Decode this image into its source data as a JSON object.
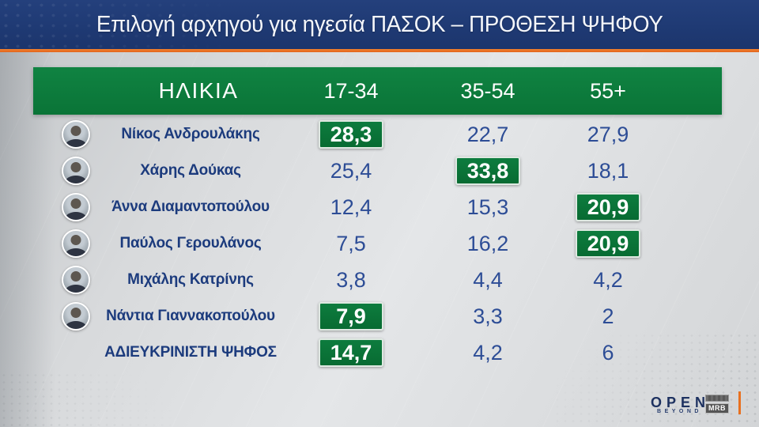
{
  "title": "Επιλογή αρχηγού για ηγεσία ΠΑΣΟΚ – ΠΡΟΘΕΣΗ ΨΗΦΟΥ",
  "table": {
    "age_label": "ΗΛΙΚΙΑ",
    "columns": [
      "17-34",
      "35-54",
      "55+"
    ],
    "rows": [
      {
        "name": "Νίκος Ανδρουλάκης",
        "values": [
          "28,3",
          "22,7",
          "27,9"
        ],
        "highlight": [
          true,
          false,
          false
        ],
        "has_photo": true
      },
      {
        "name": "Χάρης Δούκας",
        "values": [
          "25,4",
          "33,8",
          "18,1"
        ],
        "highlight": [
          false,
          true,
          false
        ],
        "has_photo": true
      },
      {
        "name": "Άννα Διαμαντοπούλου",
        "values": [
          "12,4",
          "15,3",
          "20,9"
        ],
        "highlight": [
          false,
          false,
          true
        ],
        "has_photo": true
      },
      {
        "name": "Παύλος Γερουλάνος",
        "values": [
          "7,5",
          "16,2",
          "20,9"
        ],
        "highlight": [
          false,
          false,
          true
        ],
        "has_photo": true
      },
      {
        "name": "Μιχάλης Κατρίνης",
        "values": [
          "3,8",
          "4,4",
          "4,2"
        ],
        "highlight": [
          false,
          false,
          false
        ],
        "has_photo": true
      },
      {
        "name": "Νάντια Γιαννακοπούλου",
        "values": [
          "7,9",
          "3,3",
          "2"
        ],
        "highlight": [
          true,
          false,
          false
        ],
        "has_photo": true
      },
      {
        "name": "ΑΔΙΕΥΚΡΙΝΙΣΤΗ ΨΗΦΟΣ",
        "values": [
          "14,7",
          "4,2",
          "6"
        ],
        "highlight": [
          true,
          false,
          false
        ],
        "has_photo": false
      }
    ]
  },
  "branding": {
    "channel": "OPEN",
    "channel_sub": "BEYOND",
    "pollster": "MRB"
  },
  "colors": {
    "header_blue": "#1f3a74",
    "orange": "#e8701f",
    "green": "#0a7437",
    "name_blue": "#1c3b7d",
    "value_blue": "#2d4d96"
  },
  "chart_data": {
    "type": "table",
    "title": "Επιλογή αρχηγού για ηγεσία ΠΑΣΟΚ – ΠΡΟΘΕΣΗ ΨΗΦΟΥ",
    "columns": [
      "ΗΛΙΚΙΑ",
      "17-34",
      "35-54",
      "55+"
    ],
    "unit": "percent, comma decimal separator",
    "rows": [
      {
        "label": "Νίκος Ανδρουλάκης",
        "values": [
          28.3,
          22.7,
          27.9
        ],
        "highlighted_column": "17-34"
      },
      {
        "label": "Χάρης Δούκας",
        "values": [
          25.4,
          33.8,
          18.1
        ],
        "highlighted_column": "35-54"
      },
      {
        "label": "Άννα Διαμαντοπούλου",
        "values": [
          12.4,
          15.3,
          20.9
        ],
        "highlighted_column": "55+"
      },
      {
        "label": "Παύλος Γερουλάνος",
        "values": [
          7.5,
          16.2,
          20.9
        ],
        "highlighted_column": "55+"
      },
      {
        "label": "Μιχάλης Κατρίνης",
        "values": [
          3.8,
          4.4,
          4.2
        ],
        "highlighted_column": null
      },
      {
        "label": "Νάντια Γιαννακοπούλου",
        "values": [
          7.9,
          3.3,
          2
        ],
        "highlighted_column": "17-34"
      },
      {
        "label": "ΑΔΙΕΥΚΡΙΝΙΣΤΗ ΨΗΦΟΣ",
        "values": [
          14.7,
          4.2,
          6
        ],
        "highlighted_column": "17-34"
      }
    ]
  }
}
